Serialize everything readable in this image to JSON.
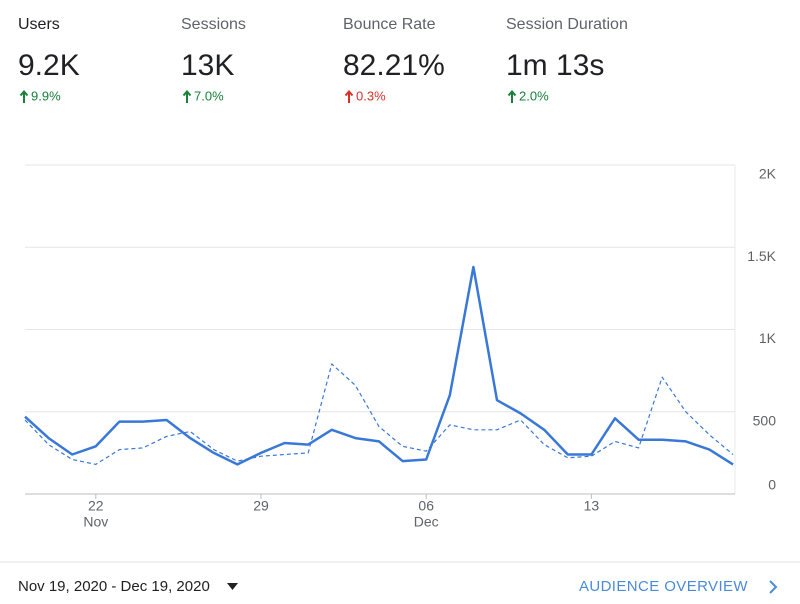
{
  "metrics": [
    {
      "label": "Users",
      "value": "9.2K",
      "change": "9.9%",
      "color": "#188038"
    },
    {
      "label": "Sessions",
      "value": "13K",
      "change": "7.0%",
      "color": "#188038"
    },
    {
      "label": "Bounce Rate",
      "value": "82.21%",
      "change": "0.3%",
      "color": "#d93025"
    },
    {
      "label": "Session Duration",
      "value": "1m 13s",
      "change": "2.0%",
      "color": "#188038"
    }
  ],
  "chart_data": {
    "type": "line",
    "categories": [
      null,
      null,
      null,
      "22",
      null,
      null,
      null,
      null,
      null,
      null,
      "29",
      null,
      null,
      null,
      null,
      null,
      null,
      "06",
      null,
      null,
      null,
      null,
      null,
      null,
      "13",
      null,
      null,
      null,
      null,
      null,
      null
    ],
    "category_months": [
      null,
      null,
      null,
      "Nov",
      null,
      null,
      null,
      null,
      null,
      null,
      null,
      null,
      null,
      null,
      null,
      null,
      null,
      "Dec",
      null,
      null,
      null,
      null,
      null,
      null,
      null,
      null,
      null,
      null,
      null,
      null,
      null
    ],
    "series": [
      {
        "color": "#3a78d8",
        "dashed": false,
        "values": [
          470,
          340,
          240,
          290,
          440,
          440,
          450,
          340,
          250,
          180,
          250,
          310,
          300,
          390,
          340,
          320,
          200,
          210,
          600,
          1380,
          570,
          490,
          390,
          240,
          240,
          460,
          330,
          330,
          320,
          270,
          180
        ]
      },
      {
        "color": "#3a78d8",
        "dashed": true,
        "values": [
          450,
          300,
          210,
          180,
          270,
          280,
          350,
          380,
          270,
          200,
          230,
          240,
          250,
          790,
          660,
          410,
          290,
          260,
          420,
          390,
          390,
          450,
          300,
          220,
          230,
          320,
          280,
          710,
          500,
          360,
          240
        ]
      }
    ],
    "ylim": [
      0,
      2000
    ],
    "yticks": [
      0,
      500,
      {
        "value": 1000,
        "label": "1K"
      },
      {
        "value": 1500,
        "label": "1.5K"
      },
      {
        "value": 2000,
        "label": "2K"
      }
    ],
    "grid": true
  },
  "footer": {
    "date_range": "Nov 19, 2020 - Dec 19, 2020",
    "link": "AUDIENCE OVERVIEW"
  }
}
